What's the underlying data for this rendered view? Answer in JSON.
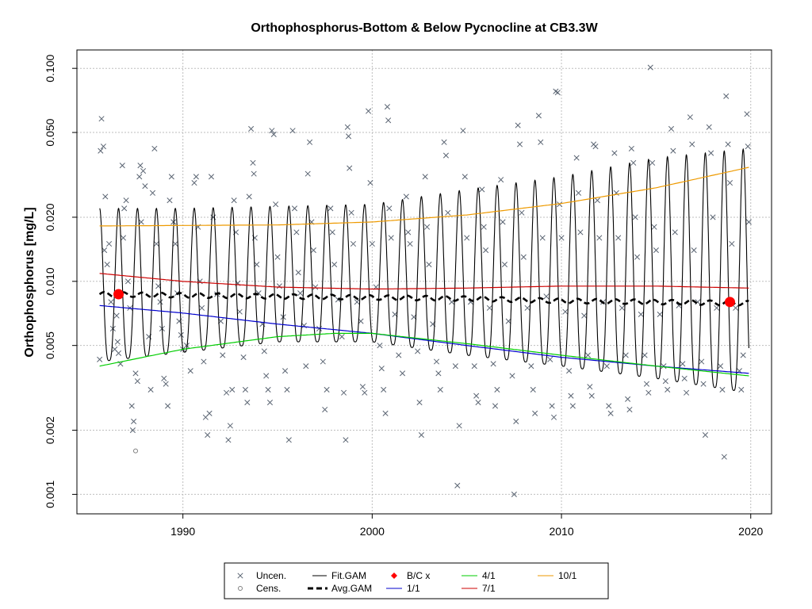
{
  "chart_data": {
    "type": "scatter",
    "title": "Orthophosphorus-Bottom & Below Pycnocline at CB3.3W",
    "xlabel": "",
    "ylabel": "Orthophosphorus [mg/L]",
    "y_scale": "log",
    "xlim": [
      1984.4,
      2021.1
    ],
    "ylim": [
      0.00081,
      0.122
    ],
    "x_ticks": [
      1990,
      2000,
      2010,
      2020
    ],
    "x_tick_labels": [
      "1990",
      "2000",
      "2010",
      "2020"
    ],
    "y_ticks": [
      0.001,
      0.002,
      0.005,
      0.01,
      0.02,
      0.05,
      0.1
    ],
    "y_tick_labels": [
      "0.001",
      "0.002",
      "0.005",
      "0.010",
      "0.020",
      "0.050",
      "0.100"
    ],
    "grid": true,
    "legend_position": "bottom",
    "colors": {
      "uncen": "#5a6472",
      "cens": "#7f7f7f",
      "fit_gam": "#000000",
      "avg_gam": "#000000",
      "bc": "#ff0000",
      "line_1_1": "#0000cd",
      "line_4_1": "#00cd00",
      "line_7_1": "#cd0000",
      "line_10_1": "#ee9a00",
      "grid": "#bebebe"
    },
    "legend": {
      "uncen": "Uncen.",
      "cens": "Cens.",
      "fit_gam": "Fit.GAM",
      "avg_gam": "Avg.GAM",
      "bc": "B/C x",
      "l_1_1": "1/1",
      "l_4_1": "4/1",
      "l_7_1": "7/1",
      "l_10_1": "10/1"
    },
    "fit_gam": {
      "start": 1985.6,
      "end": 2019.9,
      "seasonal_peaks": [
        [
          1985.6,
          0.022
        ],
        [
          1990.0,
          0.022
        ],
        [
          2000.0,
          0.023
        ],
        [
          2005.0,
          0.027
        ],
        [
          2010.0,
          0.031
        ],
        [
          2015.0,
          0.038
        ],
        [
          2019.9,
          0.042
        ]
      ],
      "seasonal_troughs": [
        [
          1985.6,
          0.0042
        ],
        [
          1995.0,
          0.0052
        ],
        [
          2000.0,
          0.0052
        ],
        [
          2005.0,
          0.0045
        ],
        [
          2010.0,
          0.004
        ],
        [
          2015.0,
          0.0035
        ],
        [
          2019.9,
          0.003
        ]
      ]
    },
    "avg_gam": [
      [
        1985.6,
        0.0087
      ],
      [
        1990.0,
        0.0086
      ],
      [
        1995.0,
        0.0085
      ],
      [
        2000.0,
        0.0084
      ],
      [
        2005.0,
        0.0083
      ],
      [
        2010.0,
        0.0081
      ],
      [
        2015.0,
        0.008
      ],
      [
        2019.9,
        0.0079
      ]
    ],
    "bc_points": [
      [
        1986.6,
        0.0087
      ],
      [
        2018.9,
        0.008
      ]
    ],
    "line_1_1": [
      [
        1985.6,
        0.0077
      ],
      [
        1990.0,
        0.0071
      ],
      [
        1995.0,
        0.0063
      ],
      [
        2000.0,
        0.0057
      ],
      [
        2005.0,
        0.005
      ],
      [
        2010.0,
        0.0044
      ],
      [
        2015.0,
        0.004
      ],
      [
        2019.9,
        0.0037
      ]
    ],
    "line_4_1": [
      [
        1985.6,
        0.004
      ],
      [
        1990.0,
        0.0048
      ],
      [
        1995.0,
        0.0055
      ],
      [
        1998.0,
        0.0057
      ],
      [
        2000.0,
        0.0057
      ],
      [
        2005.0,
        0.0051
      ],
      [
        2010.0,
        0.0045
      ],
      [
        2015.0,
        0.004
      ],
      [
        2019.9,
        0.0036
      ]
    ],
    "line_7_1": [
      [
        1985.6,
        0.0109
      ],
      [
        1990.0,
        0.01
      ],
      [
        1995.0,
        0.0094
      ],
      [
        2000.0,
        0.0092
      ],
      [
        2005.0,
        0.0093
      ],
      [
        2010.0,
        0.0095
      ],
      [
        2015.0,
        0.0095
      ],
      [
        2019.9,
        0.0093
      ]
    ],
    "line_10_1": [
      [
        1985.6,
        0.0182
      ],
      [
        1990.0,
        0.0183
      ],
      [
        1995.0,
        0.0184
      ],
      [
        2000.0,
        0.019
      ],
      [
        2005.0,
        0.0205
      ],
      [
        2010.0,
        0.0232
      ],
      [
        2015.0,
        0.0275
      ],
      [
        2019.9,
        0.0343
      ]
    ],
    "uncen_points": [
      [
        1985.6,
        0.0043
      ],
      [
        1985.65,
        0.041
      ],
      [
        1985.7,
        0.058
      ],
      [
        1985.8,
        0.043
      ],
      [
        1985.85,
        0.014
      ],
      [
        1985.9,
        0.025
      ],
      [
        1986.0,
        0.012
      ],
      [
        1986.1,
        0.015
      ],
      [
        1986.2,
        0.008
      ],
      [
        1986.3,
        0.006
      ],
      [
        1986.4,
        0.0048
      ],
      [
        1986.5,
        0.0069
      ],
      [
        1986.55,
        0.0052
      ],
      [
        1986.6,
        0.0046
      ],
      [
        1986.7,
        0.0041
      ],
      [
        1986.8,
        0.035
      ],
      [
        1986.85,
        0.016
      ],
      [
        1986.9,
        0.022
      ],
      [
        1987.0,
        0.024
      ],
      [
        1987.1,
        0.01
      ],
      [
        1987.2,
        0.0075
      ],
      [
        1987.3,
        0.0026
      ],
      [
        1987.35,
        0.002
      ],
      [
        1987.4,
        0.0022
      ],
      [
        1987.5,
        0.0037
      ],
      [
        1987.6,
        0.0034
      ],
      [
        1987.7,
        0.031
      ],
      [
        1987.75,
        0.035
      ],
      [
        1987.8,
        0.019
      ],
      [
        1987.9,
        0.033
      ],
      [
        1988.0,
        0.028
      ],
      [
        1988.2,
        0.0055
      ],
      [
        1988.3,
        0.0031
      ],
      [
        1988.4,
        0.026
      ],
      [
        1988.5,
        0.042
      ],
      [
        1988.6,
        0.015
      ],
      [
        1988.7,
        0.0095
      ],
      [
        1988.8,
        0.008
      ],
      [
        1988.9,
        0.006
      ],
      [
        1989.0,
        0.0035
      ],
      [
        1989.1,
        0.0033
      ],
      [
        1989.2,
        0.0026
      ],
      [
        1989.3,
        0.024
      ],
      [
        1989.4,
        0.031
      ],
      [
        1989.5,
        0.019
      ],
      [
        1989.6,
        0.015
      ],
      [
        1989.7,
        0.0088
      ],
      [
        1989.8,
        0.0065
      ],
      [
        1989.9,
        0.0056
      ],
      [
        1990.0,
        0.0048
      ],
      [
        1990.2,
        0.005
      ],
      [
        1990.4,
        0.0038
      ],
      [
        1990.6,
        0.029
      ],
      [
        1990.7,
        0.031
      ],
      [
        1990.8,
        0.018
      ],
      [
        1990.9,
        0.01
      ],
      [
        1991.0,
        0.0075
      ],
      [
        1991.1,
        0.0042
      ],
      [
        1991.2,
        0.0023
      ],
      [
        1991.3,
        0.0019
      ],
      [
        1991.4,
        0.0024
      ],
      [
        1991.5,
        0.031
      ],
      [
        1991.6,
        0.02
      ],
      [
        1991.8,
        0.0087
      ],
      [
        1992.0,
        0.0065
      ],
      [
        1992.1,
        0.0045
      ],
      [
        1992.3,
        0.003
      ],
      [
        1992.4,
        0.0018
      ],
      [
        1992.5,
        0.0021
      ],
      [
        1992.6,
        0.0031
      ],
      [
        1992.7,
        0.024
      ],
      [
        1992.8,
        0.017
      ],
      [
        1992.9,
        0.0098
      ],
      [
        1993.0,
        0.0072
      ],
      [
        1993.2,
        0.0044
      ],
      [
        1993.3,
        0.0031
      ],
      [
        1993.4,
        0.0027
      ],
      [
        1993.5,
        0.025
      ],
      [
        1993.6,
        0.052
      ],
      [
        1993.7,
        0.036
      ],
      [
        1993.75,
        0.032
      ],
      [
        1993.8,
        0.016
      ],
      [
        1993.9,
        0.012
      ],
      [
        1994.0,
        0.0088
      ],
      [
        1994.2,
        0.0063
      ],
      [
        1994.3,
        0.0047
      ],
      [
        1994.4,
        0.0036
      ],
      [
        1994.5,
        0.0031
      ],
      [
        1994.6,
        0.0027
      ],
      [
        1994.7,
        0.051
      ],
      [
        1994.8,
        0.049
      ],
      [
        1994.9,
        0.023
      ],
      [
        1995.0,
        0.013
      ],
      [
        1995.1,
        0.0095
      ],
      [
        1995.3,
        0.0068
      ],
      [
        1995.4,
        0.0038
      ],
      [
        1995.5,
        0.0031
      ],
      [
        1995.6,
        0.0018
      ],
      [
        1995.8,
        0.051
      ],
      [
        1995.9,
        0.022
      ],
      [
        1996.0,
        0.017
      ],
      [
        1996.1,
        0.011
      ],
      [
        1996.2,
        0.0088
      ],
      [
        1996.4,
        0.0062
      ],
      [
        1996.5,
        0.004
      ],
      [
        1996.6,
        0.032
      ],
      [
        1996.7,
        0.045
      ],
      [
        1996.8,
        0.019
      ],
      [
        1996.9,
        0.014
      ],
      [
        1997.0,
        0.0094
      ],
      [
        1997.2,
        0.006
      ],
      [
        1997.4,
        0.0042
      ],
      [
        1997.5,
        0.0025
      ],
      [
        1997.6,
        0.0031
      ],
      [
        1997.8,
        0.022
      ],
      [
        1997.9,
        0.017
      ],
      [
        1998.0,
        0.012
      ],
      [
        1998.2,
        0.0082
      ],
      [
        1998.4,
        0.0055
      ],
      [
        1998.5,
        0.003
      ],
      [
        1998.6,
        0.0018
      ],
      [
        1998.7,
        0.053
      ],
      [
        1998.75,
        0.048
      ],
      [
        1998.8,
        0.034
      ],
      [
        1998.9,
        0.021
      ],
      [
        1999.0,
        0.015
      ],
      [
        1999.2,
        0.008
      ],
      [
        1999.4,
        0.0065
      ],
      [
        1999.5,
        0.0032
      ],
      [
        1999.6,
        0.003
      ],
      [
        1999.8,
        0.063
      ],
      [
        1999.9,
        0.029
      ],
      [
        2000.0,
        0.015
      ],
      [
        2000.2,
        0.0094
      ],
      [
        2000.4,
        0.005
      ],
      [
        2000.5,
        0.0039
      ],
      [
        2000.6,
        0.0031
      ],
      [
        2000.7,
        0.0024
      ],
      [
        2000.8,
        0.066
      ],
      [
        2000.85,
        0.057
      ],
      [
        2000.9,
        0.022
      ],
      [
        2001.0,
        0.016
      ],
      [
        2001.2,
        0.007
      ],
      [
        2001.4,
        0.0045
      ],
      [
        2001.6,
        0.0037
      ],
      [
        2001.8,
        0.025
      ],
      [
        2001.9,
        0.017
      ],
      [
        2002.0,
        0.015
      ],
      [
        2002.2,
        0.0068
      ],
      [
        2002.4,
        0.0047
      ],
      [
        2002.5,
        0.0027
      ],
      [
        2002.6,
        0.0019
      ],
      [
        2002.8,
        0.031
      ],
      [
        2002.9,
        0.018
      ],
      [
        2003.0,
        0.012
      ],
      [
        2003.2,
        0.0063
      ],
      [
        2003.4,
        0.0042
      ],
      [
        2003.5,
        0.0037
      ],
      [
        2003.6,
        0.0031
      ],
      [
        2003.8,
        0.045
      ],
      [
        2003.9,
        0.039
      ],
      [
        2004.0,
        0.021
      ],
      [
        2004.2,
        0.008
      ],
      [
        2004.4,
        0.004
      ],
      [
        2004.5,
        0.0011
      ],
      [
        2004.6,
        0.0021
      ],
      [
        2004.8,
        0.051
      ],
      [
        2004.9,
        0.031
      ],
      [
        2005.0,
        0.016
      ],
      [
        2005.2,
        0.008
      ],
      [
        2005.4,
        0.004
      ],
      [
        2005.5,
        0.0029
      ],
      [
        2005.6,
        0.0027
      ],
      [
        2005.8,
        0.027
      ],
      [
        2005.9,
        0.018
      ],
      [
        2006.0,
        0.014
      ],
      [
        2006.2,
        0.0075
      ],
      [
        2006.4,
        0.0041
      ],
      [
        2006.5,
        0.0026
      ],
      [
        2006.6,
        0.0031
      ],
      [
        2006.8,
        0.03
      ],
      [
        2006.9,
        0.019
      ],
      [
        2007.0,
        0.012
      ],
      [
        2007.2,
        0.0065
      ],
      [
        2007.4,
        0.0036
      ],
      [
        2007.5,
        0.001
      ],
      [
        2007.6,
        0.0022
      ],
      [
        2007.7,
        0.054
      ],
      [
        2007.8,
        0.044
      ],
      [
        2007.9,
        0.021
      ],
      [
        2008.0,
        0.013
      ],
      [
        2008.2,
        0.0075
      ],
      [
        2008.4,
        0.004
      ],
      [
        2008.5,
        0.0031
      ],
      [
        2008.6,
        0.0024
      ],
      [
        2008.8,
        0.06
      ],
      [
        2008.9,
        0.045
      ],
      [
        2009.0,
        0.016
      ],
      [
        2009.2,
        0.0085
      ],
      [
        2009.4,
        0.0043
      ],
      [
        2009.5,
        0.0026
      ],
      [
        2009.6,
        0.0023
      ],
      [
        2009.7,
        0.078
      ],
      [
        2009.8,
        0.077
      ],
      [
        2009.9,
        0.023
      ],
      [
        2010.0,
        0.016
      ],
      [
        2010.2,
        0.0072
      ],
      [
        2010.4,
        0.0038
      ],
      [
        2010.5,
        0.0029
      ],
      [
        2010.6,
        0.0026
      ],
      [
        2010.8,
        0.038
      ],
      [
        2010.9,
        0.026
      ],
      [
        2011.0,
        0.017
      ],
      [
        2011.2,
        0.0069
      ],
      [
        2011.4,
        0.0045
      ],
      [
        2011.5,
        0.0032
      ],
      [
        2011.6,
        0.0029
      ],
      [
        2011.7,
        0.044
      ],
      [
        2011.8,
        0.043
      ],
      [
        2011.9,
        0.024
      ],
      [
        2012.0,
        0.016
      ],
      [
        2012.2,
        0.008
      ],
      [
        2012.4,
        0.004
      ],
      [
        2012.5,
        0.0026
      ],
      [
        2012.6,
        0.0024
      ],
      [
        2012.8,
        0.04
      ],
      [
        2012.9,
        0.026
      ],
      [
        2013.0,
        0.016
      ],
      [
        2013.2,
        0.0075
      ],
      [
        2013.4,
        0.0045
      ],
      [
        2013.5,
        0.0028
      ],
      [
        2013.6,
        0.0025
      ],
      [
        2013.7,
        0.042
      ],
      [
        2013.8,
        0.036
      ],
      [
        2013.9,
        0.02
      ],
      [
        2014.0,
        0.013
      ],
      [
        2014.2,
        0.007
      ],
      [
        2014.4,
        0.0045
      ],
      [
        2014.5,
        0.0033
      ],
      [
        2014.6,
        0.003
      ],
      [
        2014.7,
        0.101
      ],
      [
        2014.8,
        0.036
      ],
      [
        2014.9,
        0.018
      ],
      [
        2015.0,
        0.014
      ],
      [
        2015.2,
        0.007
      ],
      [
        2015.4,
        0.004
      ],
      [
        2015.5,
        0.0034
      ],
      [
        2015.6,
        0.0031
      ],
      [
        2015.8,
        0.052
      ],
      [
        2015.9,
        0.041
      ],
      [
        2016.0,
        0.017
      ],
      [
        2016.2,
        0.0077
      ],
      [
        2016.4,
        0.0041
      ],
      [
        2016.5,
        0.0035
      ],
      [
        2016.6,
        0.003
      ],
      [
        2016.8,
        0.059
      ],
      [
        2016.9,
        0.044
      ],
      [
        2017.0,
        0.014
      ],
      [
        2017.2,
        0.008
      ],
      [
        2017.4,
        0.0042
      ],
      [
        2017.5,
        0.0033
      ],
      [
        2017.6,
        0.0019
      ],
      [
        2017.8,
        0.053
      ],
      [
        2017.9,
        0.04
      ],
      [
        2018.0,
        0.02
      ],
      [
        2018.2,
        0.0075
      ],
      [
        2018.4,
        0.004
      ],
      [
        2018.5,
        0.0031
      ],
      [
        2018.6,
        0.0015
      ],
      [
        2018.7,
        0.074
      ],
      [
        2018.8,
        0.044
      ],
      [
        2018.9,
        0.029
      ],
      [
        2019.0,
        0.015
      ],
      [
        2019.2,
        0.0075
      ],
      [
        2019.4,
        0.0038
      ],
      [
        2019.5,
        0.0031
      ],
      [
        2019.6,
        0.0045
      ],
      [
        2019.8,
        0.061
      ],
      [
        2019.85,
        0.043
      ],
      [
        2019.9,
        0.019
      ]
    ],
    "cens_points": [
      [
        1987.5,
        0.0016
      ]
    ]
  }
}
